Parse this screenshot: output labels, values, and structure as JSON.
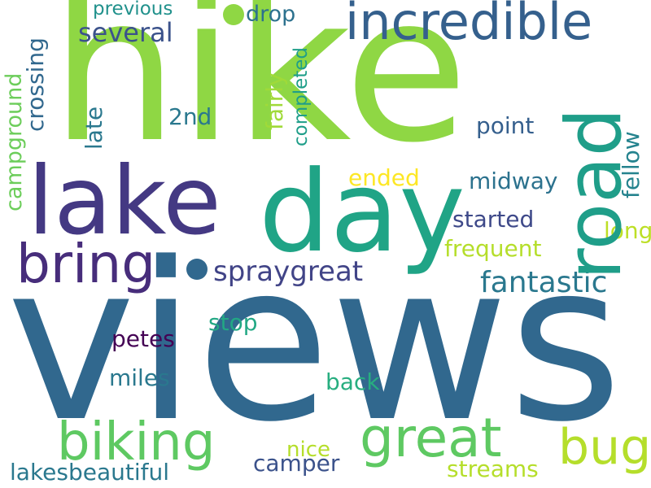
{
  "cloud": {
    "words": {
      "hike": "hike",
      "views": "views",
      "lake": "lake",
      "day": "day",
      "road": "road",
      "incredible": "incredible",
      "bring": "bring",
      "biking": "biking",
      "great": "great",
      "bug": "bug",
      "spraygreat": "spraygreat",
      "fantastic": "fantastic",
      "several": "several",
      "drop": "drop",
      "previous": "previous",
      "point": "point",
      "2nd": "2nd",
      "fellow": "fellow",
      "midway": "midway",
      "started": "started",
      "long": "long",
      "frequent": "frequent",
      "ended": "ended",
      "crossing": "crossing",
      "campground": "campground",
      "late": "late",
      "fairly": "fairly",
      "completed": "completed",
      "stop": "stop",
      "petes": "petes",
      "miles": "miles",
      "back": "back",
      "nice": "nice",
      "camper": "camper",
      "streams": "streams",
      "lakesbeautiful": "lakesbeautiful"
    },
    "colors": {
      "hike": "#8fd744",
      "views": "#31688e",
      "lake": "#443983",
      "day": "#20a486",
      "road": "#1f9e89",
      "incredible": "#35608d",
      "bring": "#472d7b",
      "biking": "#5ec962",
      "great": "#5ec962",
      "bug": "#b5de2b",
      "spraygreat": "#414487",
      "fantastic": "#2a788e",
      "several": "#3b528b",
      "drop": "#2c718e",
      "previous": "#21918c",
      "point": "#355f8d",
      "2nd": "#2a788e",
      "fellow": "#25838e",
      "midway": "#2c728e",
      "started": "#3e4989",
      "long": "#bddf26",
      "frequent": "#b5de2b",
      "ended": "#fde725",
      "crossing": "#31688e",
      "campground": "#6ccd5a",
      "late": "#2a788e",
      "fairly": "#a0da39",
      "completed": "#1f9e89",
      "stop": "#22a884",
      "petes": "#440154",
      "miles": "#2a788e",
      "back": "#28ae80",
      "nice": "#b5de2b",
      "camper": "#3b528b",
      "streams": "#b5de2b",
      "lakesbeautiful": "#2a788e",
      "dots": "#31688e"
    }
  }
}
